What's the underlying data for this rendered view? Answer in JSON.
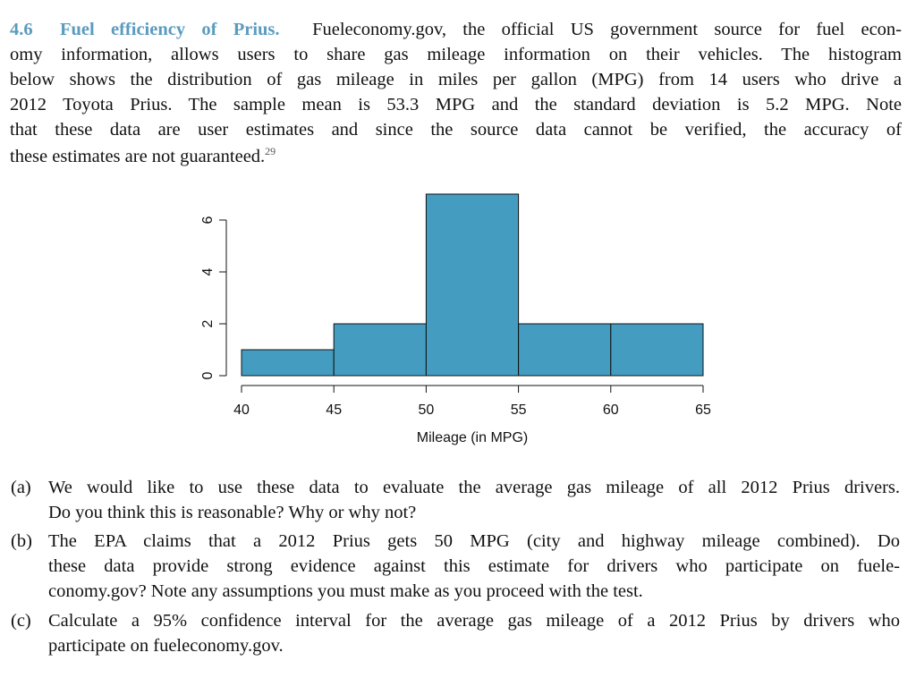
{
  "exercise": {
    "number": "4.6",
    "title": "Fuel efficiency of Prius.",
    "footnote": "29",
    "lines": [
      "Fueleconomy.gov, the official US government source for fuel econ-",
      "omy information, allows users to share gas mileage information on their vehicles. The histogram",
      "below shows the distribution of gas mileage in miles per gallon (MPG) from 14 users who drive a",
      "2012 Toyota Prius. The sample mean is 53.3 MPG and the standard deviation is 5.2 MPG. Note",
      "that these data are user estimates and since the source data cannot be verified, the accuracy of",
      "these estimates are not guaranteed."
    ]
  },
  "chart_data": {
    "type": "bar",
    "subtype": "histogram",
    "bins": [
      [
        40,
        45
      ],
      [
        45,
        50
      ],
      [
        50,
        55
      ],
      [
        55,
        60
      ],
      [
        60,
        65
      ]
    ],
    "values": [
      1,
      2,
      7,
      2,
      2
    ],
    "xlabel": "Mileage (in MPG)",
    "ylabel": "",
    "xticks": [
      40,
      45,
      50,
      55,
      60,
      65
    ],
    "yticks": [
      0,
      2,
      4,
      6
    ],
    "xlim": [
      40,
      65
    ],
    "ylim": [
      0,
      7
    ],
    "bar_color": "#449dc1",
    "grid": false
  },
  "questions": [
    {
      "label": "(a)",
      "lines": [
        "We would like to use these data to evaluate the average gas mileage of all 2012 Prius drivers.",
        "Do you think this is reasonable? Why or why not?"
      ]
    },
    {
      "label": "(b)",
      "lines": [
        "The EPA claims that a 2012 Prius gets 50 MPG (city and highway mileage combined). Do",
        "these data provide strong evidence against this estimate for drivers who participate on fuele-",
        "conomy.gov? Note any assumptions you must make as you proceed with the test."
      ]
    },
    {
      "label": "(c)",
      "lines": [
        "Calculate a 95% confidence interval for the average gas mileage of a 2012 Prius by drivers who",
        "participate on fueleconomy.gov."
      ]
    }
  ]
}
